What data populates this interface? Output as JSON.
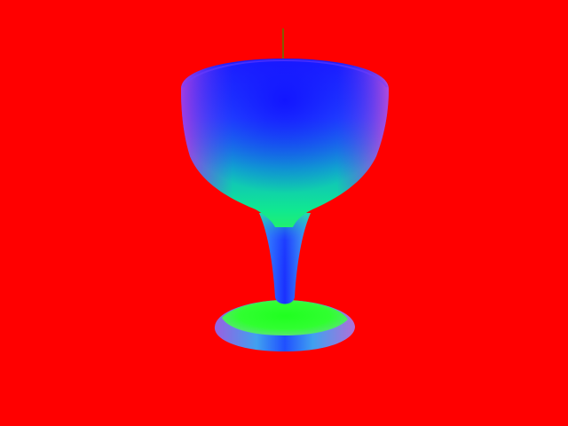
{
  "scene": {
    "background_color": "#ff0000",
    "object": "goblet",
    "render_style": "surface-normal shading",
    "palette": {
      "top_facing": "#0000ff",
      "side_left": "#a02fe0",
      "side_right": "#b03fd8",
      "mid": "#00c8a0",
      "up_facing": "#00ff00",
      "front_facing": "#1e6cff",
      "stem_core": "#1f3cff"
    },
    "antenna_color": "#5a7a00"
  }
}
